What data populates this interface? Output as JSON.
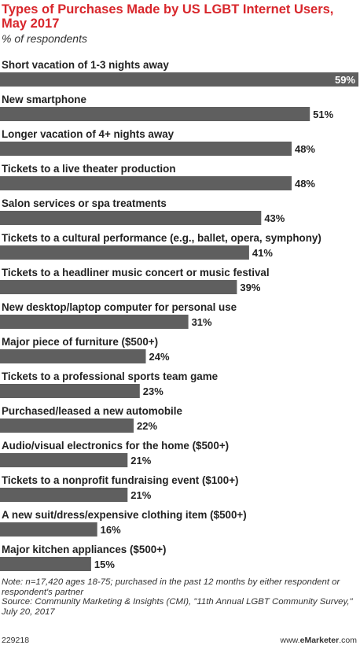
{
  "header": {
    "title": "Types of Purchases Made by US LGBT Internet Users, May 2017",
    "subtitle": "% of respondents"
  },
  "chart_data": {
    "type": "bar",
    "orientation": "horizontal",
    "value_suffix": "%",
    "categories": [
      "Short vacation of 1-3 nights away",
      "New smartphone",
      "Longer vacation of 4+ nights away",
      "Tickets to a live theater production",
      "Salon services or spa treatments",
      "Tickets to a cultural performance (e.g., ballet, opera, symphony)",
      "Tickets to a headliner music concert or music festival",
      "New desktop/laptop computer for personal use",
      "Major piece of furniture ($500+)",
      "Tickets to a professional sports team game",
      "Purchased/leased a new automobile",
      "Audio/visual electronics for the home ($500+)",
      "Tickets to a nonprofit fundraising event ($100+)",
      "A new suit/dress/expensive clothing item ($500+)",
      "Major kitchen appliances ($500+)"
    ],
    "values": [
      59,
      51,
      48,
      48,
      43,
      41,
      39,
      31,
      24,
      23,
      22,
      21,
      21,
      16,
      15
    ],
    "bar_color": "#5f5f5f",
    "grid": false
  },
  "notes": {
    "note": "Note: n=17,420 ages 18-75; purchased in the past 12 months by either respondent or respondent's partner",
    "source": "Source: Community Marketing & Insights (CMI), \"11th Annual LGBT Community Survey,\" July 20, 2017"
  },
  "footer": {
    "chart_id": "229218",
    "site_prefix": "www.",
    "site_brand": "eMarketer",
    "site_suffix": ".com"
  }
}
